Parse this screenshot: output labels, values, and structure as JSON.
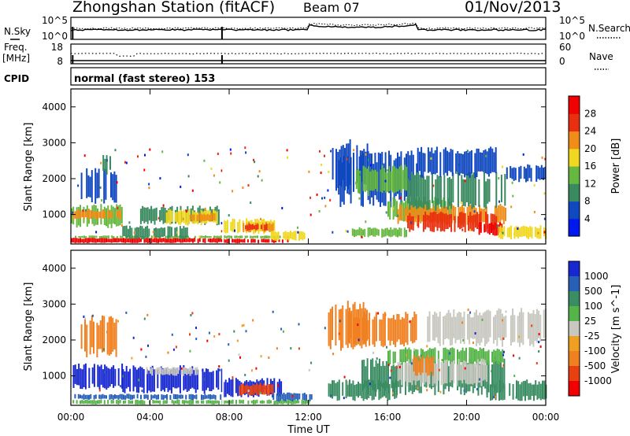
{
  "header": {
    "station": "Zhongshan Station (fitACF)",
    "beam": "Beam 07",
    "date": "01/Nov/2013"
  },
  "strip_labels": {
    "nsky": "N.Sky",
    "nsky_ticks": [
      "10^5",
      "10^0"
    ],
    "nsearch": "N.Search",
    "nsearch_ticks": [
      "10^5",
      "10^0"
    ],
    "freq": "Freq.",
    "freq_unit": "[MHz]",
    "freq_ticks": [
      "18",
      "8"
    ],
    "nave": "Nave",
    "nave_ticks": [
      "60",
      "0"
    ],
    "cpid": "CPID",
    "cpid_text": "normal (fast stereo) 153"
  },
  "axes": {
    "ylabel": "Slant Range [km]",
    "xlabel": "Time UT",
    "yticks": [
      "1000",
      "2000",
      "3000",
      "4000"
    ],
    "xticks": [
      "00:00",
      "04:00",
      "08:00",
      "12:00",
      "16:00",
      "20:00",
      "00:00"
    ]
  },
  "colorbars": {
    "power": {
      "label": "Power [dB]",
      "ticks": [
        "4",
        "8",
        "12",
        "16",
        "20",
        "24",
        "28"
      ],
      "colors": [
        "#0018f0",
        "#1048c0",
        "#3a8a60",
        "#66b840",
        "#f0d820",
        "#f08c18",
        "#e83010",
        "#f00000"
      ]
    },
    "velocity": {
      "label": "Velocity [m s^-1]",
      "ticks": [
        "1000",
        "500",
        "100",
        "25",
        "-25",
        "-100",
        "-500",
        "-1000"
      ],
      "colors": [
        "#1828d0",
        "#2860b8",
        "#3a8c62",
        "#54b448",
        "#c8c8c0",
        "#f0a020",
        "#f08020",
        "#e84010",
        "#f00000"
      ]
    }
  },
  "chart_data": [
    {
      "type": "heatmap",
      "name_label": "Power",
      "x_range_hours": [
        0,
        24
      ],
      "y_range_km": [
        180,
        4500
      ],
      "ylabel": "Slant Range [km]",
      "xlabel": "Time UT",
      "colorbar_range_dB": [
        0,
        30
      ],
      "regions": [
        {
          "t": [
            0.0,
            7.6
          ],
          "r": [
            200,
            360
          ],
          "c": 7
        },
        {
          "t": [
            7.6,
            11.0
          ],
          "r": [
            200,
            330
          ],
          "c": 7
        },
        {
          "t": [
            0.2,
            11.0
          ],
          "r": [
            330,
            420
          ],
          "c": 3
        },
        {
          "t": [
            0.0,
            2.6
          ],
          "r": [
            600,
            1300
          ],
          "c": 3
        },
        {
          "t": [
            0.1,
            2.5
          ],
          "r": [
            850,
            1150
          ],
          "c": 5
        },
        {
          "t": [
            2.6,
            6.0
          ],
          "r": [
            300,
            700
          ],
          "c": 2
        },
        {
          "t": [
            3.5,
            7.5
          ],
          "r": [
            700,
            1250
          ],
          "c": 2
        },
        {
          "t": [
            4.8,
            7.4
          ],
          "r": [
            700,
            1150
          ],
          "c": 4
        },
        {
          "t": [
            6.0,
            7.3
          ],
          "r": [
            800,
            1050
          ],
          "c": 5
        },
        {
          "t": [
            7.7,
            10.4
          ],
          "r": [
            450,
            900
          ],
          "c": 4
        },
        {
          "t": [
            8.6,
            10.2
          ],
          "r": [
            500,
            800
          ],
          "c": 5
        },
        {
          "t": [
            8.8,
            10.0
          ],
          "r": [
            550,
            750
          ],
          "c": 6
        },
        {
          "t": [
            10.1,
            11.8
          ],
          "r": [
            260,
            550
          ],
          "c": 4
        },
        {
          "t": [
            0.5,
            2.3
          ],
          "r": [
            1300,
            2300
          ],
          "c": 1
        },
        {
          "t": [
            1.6,
            2.0
          ],
          "r": [
            2100,
            2700
          ],
          "c": 2
        },
        {
          "t": [
            13.2,
            15.0
          ],
          "r": [
            1600,
            3100
          ],
          "c": 1
        },
        {
          "t": [
            13.5,
            17.5
          ],
          "r": [
            1200,
            2800
          ],
          "c": 1
        },
        {
          "t": [
            14.4,
            17.0
          ],
          "r": [
            1500,
            2400
          ],
          "c": 3
        },
        {
          "t": [
            16.0,
            19.2
          ],
          "r": [
            800,
            1500
          ],
          "c": 3
        },
        {
          "t": [
            16.5,
            22.0
          ],
          "r": [
            700,
            1300
          ],
          "c": 5
        },
        {
          "t": [
            17.0,
            21.5
          ],
          "r": [
            500,
            1100
          ],
          "c": 6
        },
        {
          "t": [
            20.6,
            21.8
          ],
          "r": [
            400,
            800
          ],
          "c": 7
        },
        {
          "t": [
            17.0,
            22.0
          ],
          "r": [
            1100,
            2200
          ],
          "c": 2
        },
        {
          "t": [
            17.5,
            21.5
          ],
          "r": [
            2000,
            2900
          ],
          "c": 1
        },
        {
          "t": [
            21.6,
            24.0
          ],
          "r": [
            300,
            700
          ],
          "c": 4
        },
        {
          "t": [
            22.0,
            24.0
          ],
          "r": [
            1900,
            2400
          ],
          "c": 1
        },
        {
          "t": [
            14.2,
            17.0
          ],
          "r": [
            350,
            650
          ],
          "c": 3
        }
      ]
    },
    {
      "type": "heatmap",
      "name_label": "Velocity",
      "x_range_hours": [
        0,
        24
      ],
      "y_range_km": [
        180,
        4500
      ],
      "ylabel": "Slant Range [km]",
      "xlabel": "Time UT",
      "colorbar_range_ms": [
        -1000,
        1000
      ],
      "regions": [
        {
          "t": [
            0.0,
            12.0
          ],
          "r": [
            200,
            340
          ],
          "c": 3
        },
        {
          "t": [
            0.0,
            7.6
          ],
          "r": [
            330,
            500
          ],
          "c": 1
        },
        {
          "t": [
            0.1,
            2.6
          ],
          "r": [
            600,
            1350
          ],
          "c": 0
        },
        {
          "t": [
            2.6,
            7.6
          ],
          "r": [
            500,
            1300
          ],
          "c": 0
        },
        {
          "t": [
            3.8,
            6.4
          ],
          "r": [
            1000,
            1250
          ],
          "c": 4
        },
        {
          "t": [
            7.7,
            10.6
          ],
          "r": [
            400,
            950
          ],
          "c": 0
        },
        {
          "t": [
            8.5,
            10.2
          ],
          "r": [
            450,
            800
          ],
          "c": 7
        },
        {
          "t": [
            10.2,
            12.2
          ],
          "r": [
            280,
            550
          ],
          "c": 1
        },
        {
          "t": [
            0.5,
            2.3
          ],
          "r": [
            1500,
            2700
          ],
          "c": 6
        },
        {
          "t": [
            13.0,
            15.0
          ],
          "r": [
            1700,
            3100
          ],
          "c": 6
        },
        {
          "t": [
            14.0,
            17.5
          ],
          "r": [
            1800,
            2800
          ],
          "c": 6
        },
        {
          "t": [
            13.0,
            16.5
          ],
          "r": [
            300,
            900
          ],
          "c": 2
        },
        {
          "t": [
            14.6,
            22.0
          ],
          "r": [
            450,
            1500
          ],
          "c": 2
        },
        {
          "t": [
            16.0,
            21.8
          ],
          "r": [
            1300,
            1800
          ],
          "c": 3
        },
        {
          "t": [
            16.5,
            21.0
          ],
          "r": [
            700,
            1500
          ],
          "c": 4
        },
        {
          "t": [
            18.0,
            24.0
          ],
          "r": [
            1800,
            2900
          ],
          "c": 4
        },
        {
          "t": [
            21.0,
            24.0
          ],
          "r": [
            300,
            900
          ],
          "c": 2
        },
        {
          "t": [
            17.3,
            18.3
          ],
          "r": [
            1000,
            1600
          ],
          "c": 6
        }
      ]
    }
  ]
}
